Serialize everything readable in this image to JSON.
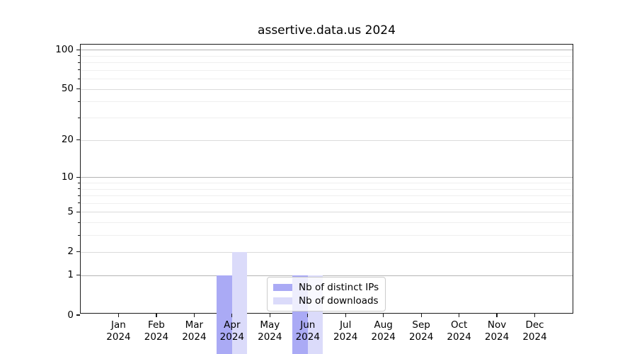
{
  "chart_data": {
    "type": "bar",
    "title": "assertive.data.us 2024",
    "x_categories": [
      "Jan",
      "Feb",
      "Mar",
      "Apr",
      "May",
      "Jun",
      "Jul",
      "Aug",
      "Sep",
      "Oct",
      "Nov",
      "Dec"
    ],
    "x_year": "2024",
    "series": [
      {
        "name": "Nb of distinct IPs",
        "color": "#aaaaf5",
        "values": [
          0,
          0,
          0,
          1,
          0,
          1,
          0,
          0,
          0,
          0,
          0,
          0
        ]
      },
      {
        "name": "Nb of downloads",
        "color": "#dbdbfa",
        "values": [
          0,
          0,
          0,
          2,
          0,
          1,
          0,
          0,
          0,
          0,
          0,
          0
        ]
      }
    ],
    "y_axis": {
      "scale": "log1p",
      "ticks": [
        0,
        1,
        2,
        5,
        10,
        20,
        50,
        100
      ],
      "minor_ticks": [
        3,
        4,
        6,
        7,
        8,
        9,
        30,
        40,
        60,
        70,
        80,
        90
      ],
      "range": [
        0,
        110
      ]
    },
    "legend": {
      "position": "lower-center",
      "entries": [
        "Nb of distinct IPs",
        "Nb of downloads"
      ]
    },
    "grid": true,
    "colors": {
      "grid_major": "#b4b4b4",
      "grid_secondary": "#dbdbdb",
      "grid_minor": "#efefef",
      "axis": "#1a1a1a",
      "background": "#ffffff"
    }
  }
}
